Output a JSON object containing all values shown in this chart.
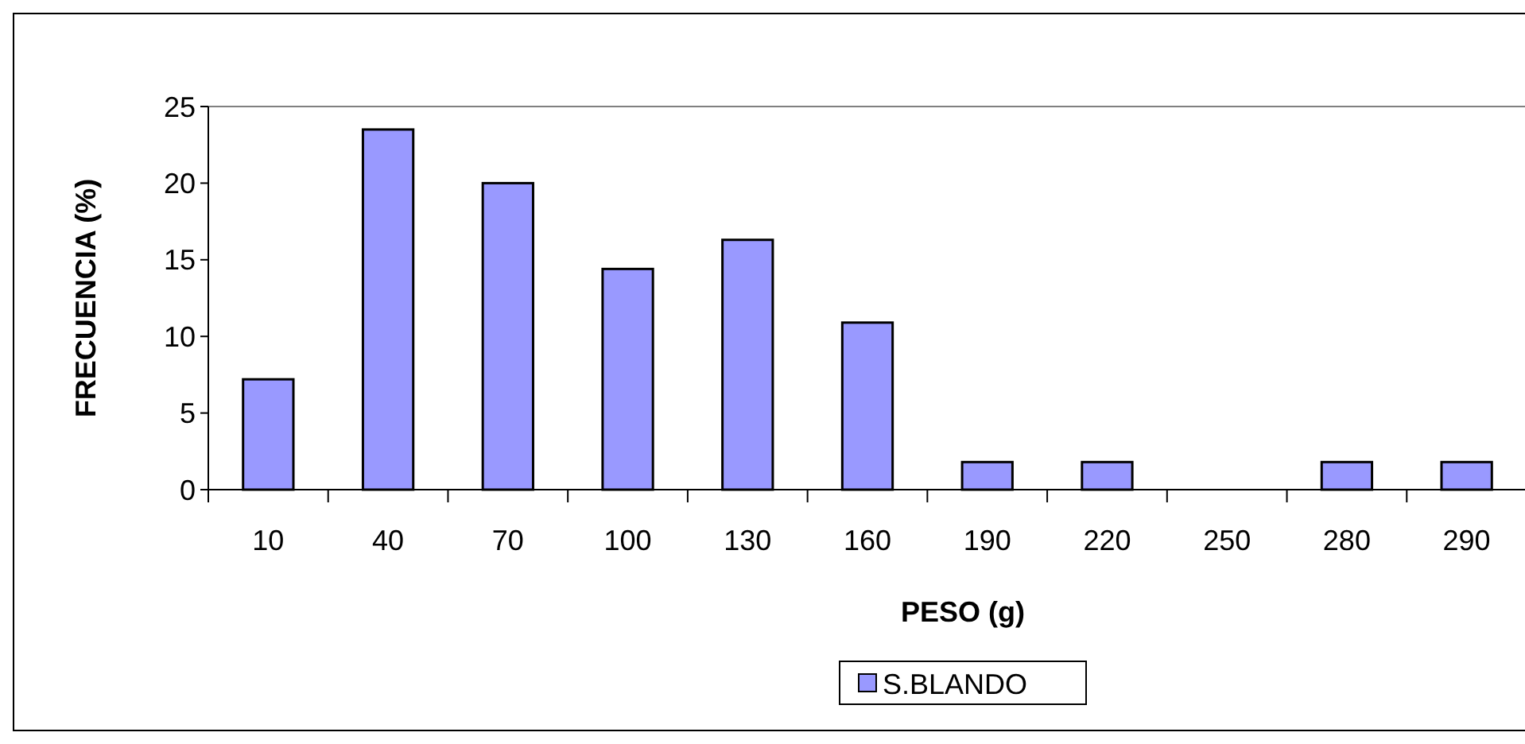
{
  "chart_data": {
    "type": "bar",
    "xlabel": "PESO (g)",
    "ylabel": "FRECUENCIA (%)",
    "categories": [
      "10",
      "40",
      "70",
      "100",
      "130",
      "160",
      "190",
      "220",
      "250",
      "280",
      "290"
    ],
    "series": [
      {
        "name": "S.BLANDO",
        "color": "#9999ff",
        "values": [
          7.2,
          23.5,
          20,
          14.4,
          16.3,
          10.9,
          1.8,
          1.8,
          0,
          1.8,
          1.8
        ]
      }
    ],
    "ylim": [
      0,
      25
    ],
    "yticks": [
      0,
      5,
      10,
      15,
      20,
      25
    ],
    "grid": false,
    "legend": "bottom"
  }
}
